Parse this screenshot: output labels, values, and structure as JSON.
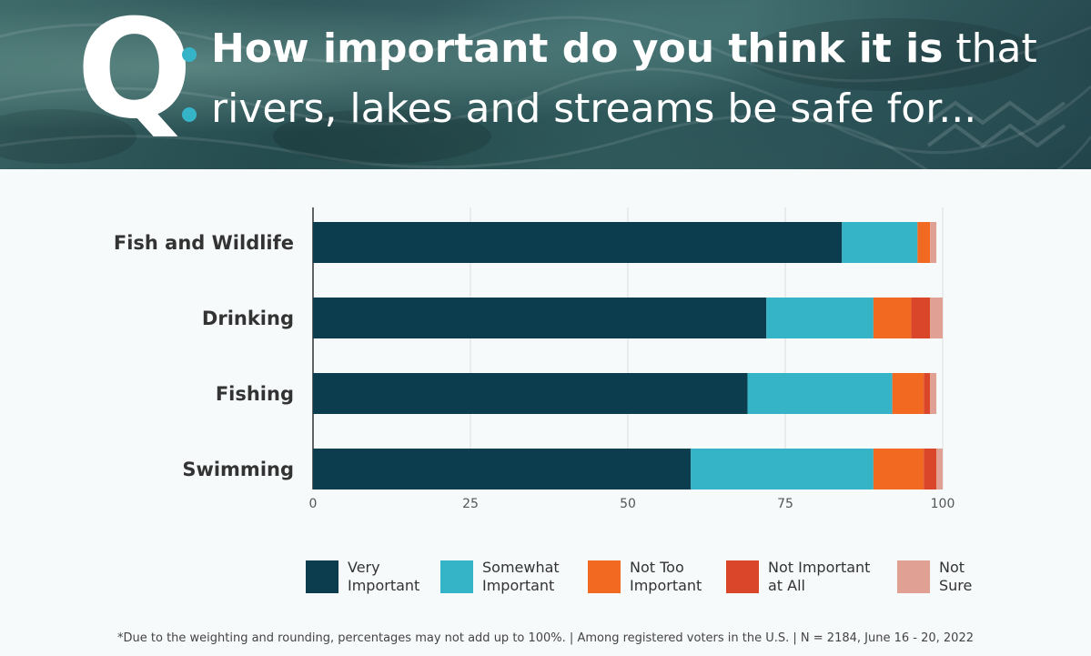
{
  "header": {
    "q_letter": "Q",
    "title_bold": "How important do you think it is",
    "title_rest": " that",
    "title_line2": "rivers, lakes and streams be safe for..."
  },
  "colors": {
    "very_important": "#0b3d4f",
    "somewhat_important": "#35b4c8",
    "not_too_important": "#f26a22",
    "not_important_at_all": "#d9462a",
    "not_sure": "#e0a093",
    "accent_dot": "#35b4c8"
  },
  "chart_data": {
    "type": "bar",
    "orientation": "horizontal",
    "stacked": true,
    "categories": [
      "Fish and Wildlife",
      "Drinking",
      "Fishing",
      "Swimming"
    ],
    "series": [
      {
        "name": "Very Important",
        "label": "Very\nImportant",
        "color": "#0b3d4f",
        "values": [
          84,
          72,
          69,
          60
        ]
      },
      {
        "name": "Somewhat Important",
        "label": "Somewhat\nImportant",
        "color": "#35b4c8",
        "values": [
          12,
          17,
          23,
          29
        ]
      },
      {
        "name": "Not Too Important",
        "label": "Not Too\nImportant",
        "color": "#f26a22",
        "values": [
          2,
          6,
          5,
          8
        ]
      },
      {
        "name": "Not Important at All",
        "label": "Not Important\nat All",
        "color": "#d9462a",
        "values": [
          0,
          3,
          1,
          2
        ]
      },
      {
        "name": "Not Sure",
        "label": "Not\nSure",
        "color": "#e0a093",
        "values": [
          1,
          2,
          1,
          1
        ]
      }
    ],
    "xlim": [
      0,
      100
    ],
    "xticks": [
      "0",
      "25",
      "50",
      "75",
      "100"
    ],
    "grid": true,
    "legend_position": "bottom"
  },
  "footnote": "*Due to the weighting and rounding, percentages may not add up to 100%.  |  Among registered voters in the U.S.  |  N = 2184, June 16 - 20, 2022"
}
